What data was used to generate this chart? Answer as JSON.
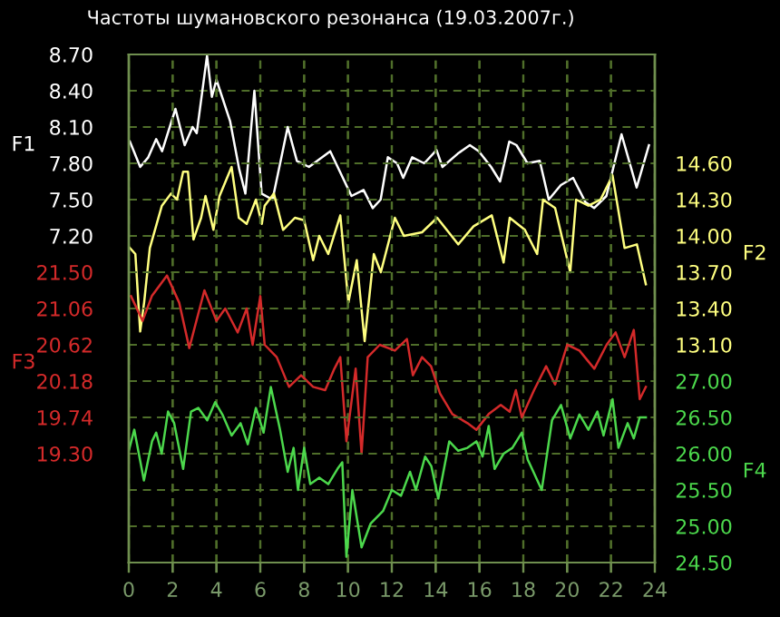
{
  "chart_data": [
    {
      "type": "line",
      "title": "Частоты шумановского резонанса (19.03.2007г.)",
      "xlim": [
        0,
        24
      ],
      "xticks": [
        0,
        2,
        4,
        6,
        8,
        10,
        12,
        14,
        16,
        18,
        20,
        22,
        24
      ],
      "ylabel": "F1",
      "ylim": [
        4.5,
        8.7
      ],
      "yticks": [
        {
          "value": 7.2,
          "label": "7.20"
        },
        {
          "value": 7.5,
          "label": "7.50"
        },
        {
          "value": 7.8,
          "label": "7.80"
        },
        {
          "value": 8.1,
          "label": "8.10"
        },
        {
          "value": 8.4,
          "label": "8.40"
        },
        {
          "value": 8.7,
          "label": "8.70"
        }
      ],
      "y2label": "F2",
      "y2lim": [
        11.3,
        15.5
      ],
      "y2ticks": [
        {
          "value": 13.1,
          "label": "13.10"
        },
        {
          "value": 13.4,
          "label": "13.40"
        },
        {
          "value": 13.7,
          "label": "13.70"
        },
        {
          "value": 14.0,
          "label": "14.00"
        },
        {
          "value": 14.3,
          "label": "14.30"
        },
        {
          "value": 14.6,
          "label": "14.60"
        }
      ],
      "grid": true,
      "line_style": "solid",
      "marker": "none",
      "series": [
        {
          "axis": "y",
          "color": "#ffffff",
          "x": [
            0.05,
            0.52,
            0.89,
            1.25,
            1.52,
            2.13,
            2.55,
            2.91,
            3.1,
            3.57,
            3.79,
            4.0,
            4.62,
            5.04,
            5.32,
            5.73,
            6.06,
            6.56,
            7.25,
            7.67,
            8.22,
            9.19,
            10.16,
            10.71,
            11.13,
            11.49,
            11.82,
            12.24,
            12.52,
            12.93,
            13.48,
            14.04,
            14.31,
            15.01,
            15.56,
            15.97,
            16.53,
            16.94,
            17.36,
            17.69,
            18.19,
            18.75,
            19.16,
            19.71,
            20.27,
            20.83,
            21.23,
            21.79,
            22.48,
            23.17,
            23.73
          ],
          "values": [
            7.98,
            7.77,
            7.85,
            8.0,
            7.9,
            8.25,
            7.95,
            8.1,
            8.05,
            8.69,
            8.35,
            8.49,
            8.15,
            7.75,
            7.55,
            8.4,
            7.55,
            7.5,
            8.1,
            7.82,
            7.77,
            7.9,
            7.53,
            7.58,
            7.43,
            7.5,
            7.85,
            7.8,
            7.68,
            7.85,
            7.8,
            7.91,
            7.77,
            7.88,
            7.95,
            7.9,
            7.77,
            7.65,
            7.98,
            7.95,
            7.8,
            7.82,
            7.5,
            7.62,
            7.68,
            7.48,
            7.43,
            7.53,
            8.04,
            7.6,
            7.95
          ]
        },
        {
          "axis": "y2",
          "color": "#ffff80",
          "x": [
            0.05,
            0.3,
            0.52,
            0.7,
            0.96,
            1.51,
            1.93,
            2.2,
            2.48,
            2.7,
            2.95,
            3.3,
            3.5,
            3.86,
            4.14,
            4.69,
            5.02,
            5.38,
            5.8,
            6.07,
            6.2,
            6.62,
            7.04,
            7.58,
            8.0,
            8.41,
            8.69,
            9.1,
            9.65,
            10.02,
            10.4,
            10.76,
            11.18,
            11.5,
            12.14,
            12.55,
            13.38,
            14.07,
            15.03,
            15.73,
            16.56,
            17.1,
            17.38,
            18.07,
            18.63,
            18.9,
            19.45,
            20.14,
            20.41,
            20.97,
            21.52,
            22.07,
            22.62,
            23.18,
            23.59
          ],
          "values": [
            13.9,
            13.85,
            13.21,
            13.45,
            13.9,
            14.25,
            14.35,
            14.3,
            14.53,
            14.53,
            13.97,
            14.15,
            14.33,
            14.05,
            14.33,
            14.57,
            14.15,
            14.1,
            14.3,
            14.1,
            14.25,
            14.35,
            14.05,
            14.15,
            14.13,
            13.8,
            14.0,
            13.85,
            14.17,
            13.45,
            13.8,
            13.13,
            13.85,
            13.7,
            14.15,
            14.0,
            14.03,
            14.15,
            13.93,
            14.08,
            14.17,
            13.78,
            14.15,
            14.05,
            13.85,
            14.3,
            14.23,
            13.7,
            14.3,
            14.25,
            14.3,
            14.5,
            13.9,
            13.93,
            13.6
          ]
        }
      ]
    },
    {
      "type": "line",
      "tick_labels": "y",
      "xlim": [
        0,
        24
      ],
      "xticks": [
        0,
        2,
        4,
        6,
        8,
        10,
        12,
        14,
        16,
        18,
        20,
        22,
        24
      ],
      "ylabel": "F3",
      "ylim": [
        17.98,
        24.14
      ],
      "yticks": [
        {
          "value": 19.3,
          "label": "19.30"
        },
        19.74,
        20.18,
        20.62,
        21.06,
        {
          "value": 21.5,
          "label": "21.50"
        }
      ],
      "y2label": "F4",
      "y2lim": [
        24.5,
        31.5
      ],
      "y2ticks": [
        {
          "value": 24.5,
          "label": "24.50"
        },
        {
          "value": 25.0,
          "label": "25.00"
        },
        {
          "value": 25.5,
          "label": "25.50"
        },
        {
          "value": 26.0,
          "label": "26.00"
        },
        {
          "value": 26.5,
          "label": "26.50"
        },
        {
          "value": 27.0,
          "label": "27.00"
        }
      ],
      "grid": true,
      "line_style": "solid",
      "marker": "none",
      "series": [
        {
          "axis": "y",
          "color": "#d42a2a",
          "x": [
            0.1,
            0.63,
            1.05,
            1.74,
            2.3,
            2.76,
            3.45,
            4.0,
            4.4,
            4.97,
            5.38,
            5.65,
            6.0,
            6.2,
            6.75,
            7.31,
            7.86,
            8.41,
            8.96,
            9.38,
            9.65,
            9.93,
            10.35,
            10.62,
            10.9,
            11.45,
            12.14,
            12.69,
            12.96,
            13.38,
            13.79,
            14.2,
            14.76,
            15.45,
            15.86,
            16.42,
            16.97,
            17.38,
            17.66,
            17.93,
            18.49,
            19.04,
            19.45,
            20.0,
            20.56,
            21.24,
            21.8,
            22.21,
            22.62,
            23.04,
            23.31,
            23.59
          ],
          "values": [
            21.21,
            20.91,
            21.21,
            21.46,
            21.13,
            20.58,
            21.28,
            20.91,
            21.06,
            20.77,
            21.06,
            20.62,
            21.21,
            20.62,
            20.47,
            20.11,
            20.25,
            20.11,
            20.07,
            20.33,
            20.47,
            19.45,
            20.33,
            19.3,
            20.47,
            20.62,
            20.55,
            20.69,
            20.25,
            20.47,
            20.36,
            20.03,
            19.78,
            19.67,
            19.59,
            19.78,
            19.89,
            19.81,
            20.07,
            19.74,
            20.07,
            20.36,
            20.14,
            20.62,
            20.55,
            20.33,
            20.62,
            20.77,
            20.47,
            20.8,
            19.96,
            20.11
          ]
        },
        {
          "axis": "y2",
          "color": "#4cd84c",
          "x": [
            0.0,
            0.25,
            0.69,
            1.06,
            1.25,
            1.5,
            1.79,
            2.07,
            2.48,
            2.84,
            3.17,
            3.58,
            3.94,
            4.27,
            4.69,
            5.1,
            5.43,
            5.8,
            6.15,
            6.48,
            6.9,
            7.25,
            7.52,
            7.72,
            8.0,
            8.28,
            8.69,
            9.1,
            9.52,
            9.74,
            9.93,
            10.2,
            10.62,
            11.04,
            11.6,
            12.0,
            12.42,
            12.83,
            13.1,
            13.52,
            13.8,
            14.12,
            14.62,
            15.03,
            15.45,
            15.86,
            16.14,
            16.42,
            16.69,
            17.1,
            17.5,
            17.93,
            18.2,
            18.84,
            19.31,
            19.72,
            20.14,
            20.56,
            20.97,
            21.38,
            21.66,
            22.07,
            22.34,
            22.76,
            23.04,
            23.31,
            23.59
          ],
          "values": [
            26.04,
            26.33,
            25.63,
            26.17,
            26.29,
            26.0,
            26.58,
            26.42,
            25.79,
            26.58,
            26.63,
            26.46,
            26.71,
            26.54,
            26.25,
            26.42,
            26.13,
            26.63,
            26.29,
            26.92,
            26.33,
            25.75,
            26.08,
            25.5,
            26.08,
            25.58,
            25.67,
            25.58,
            25.79,
            25.88,
            24.58,
            25.5,
            24.71,
            25.04,
            25.21,
            25.5,
            25.42,
            25.75,
            25.5,
            25.96,
            25.83,
            25.38,
            26.17,
            26.04,
            26.08,
            26.17,
            25.96,
            26.38,
            25.79,
            26.0,
            26.08,
            26.29,
            25.92,
            25.5,
            26.46,
            26.67,
            26.21,
            26.54,
            26.33,
            26.58,
            26.25,
            26.75,
            26.08,
            26.42,
            26.21,
            26.5,
            26.5
          ]
        }
      ]
    }
  ]
}
